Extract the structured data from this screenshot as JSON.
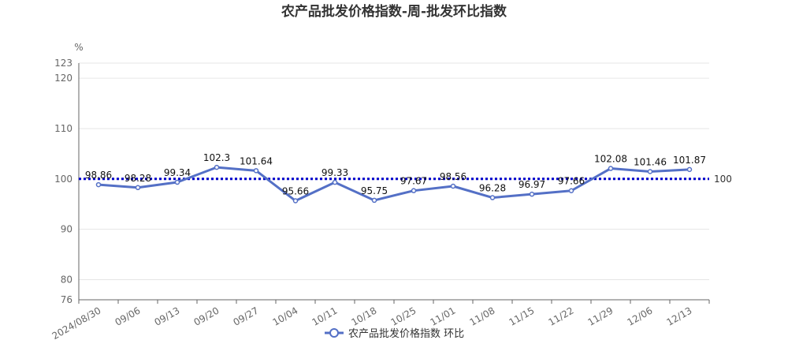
{
  "chart_data": {
    "type": "line",
    "title": "农产品批发价格指数-周-批发环比指数",
    "ylabel": "%",
    "ylim": [
      76,
      123
    ],
    "yticks": [
      76,
      80,
      90,
      100,
      110,
      120,
      123
    ],
    "categories": [
      "2024/08/30",
      "09/06",
      "09/13",
      "09/20",
      "09/27",
      "10/04",
      "10/11",
      "10/18",
      "10/25",
      "11/01",
      "11/08",
      "11/15",
      "11/22",
      "11/29",
      "12/06",
      "12/13"
    ],
    "series": [
      {
        "name": "农产品批发价格指数 环比",
        "values": [
          98.86,
          98.28,
          99.34,
          102.3,
          101.64,
          95.66,
          99.33,
          95.75,
          97.67,
          98.56,
          96.28,
          96.97,
          97.66,
          102.08,
          101.46,
          101.87
        ],
        "labels": [
          "98.86",
          "98.28",
          "99.34",
          "102.3",
          "101.64",
          "95.66",
          "99.33",
          "95.75",
          "97.67",
          "98.56",
          "96.28",
          "96.97",
          "97.66",
          "102.08",
          "101.46",
          "101.87"
        ],
        "color": "#5470c6"
      }
    ],
    "reference_line": {
      "value": 100,
      "label": "100",
      "color": "#0000cc"
    },
    "grid": true,
    "legend_position": "bottom-center"
  }
}
